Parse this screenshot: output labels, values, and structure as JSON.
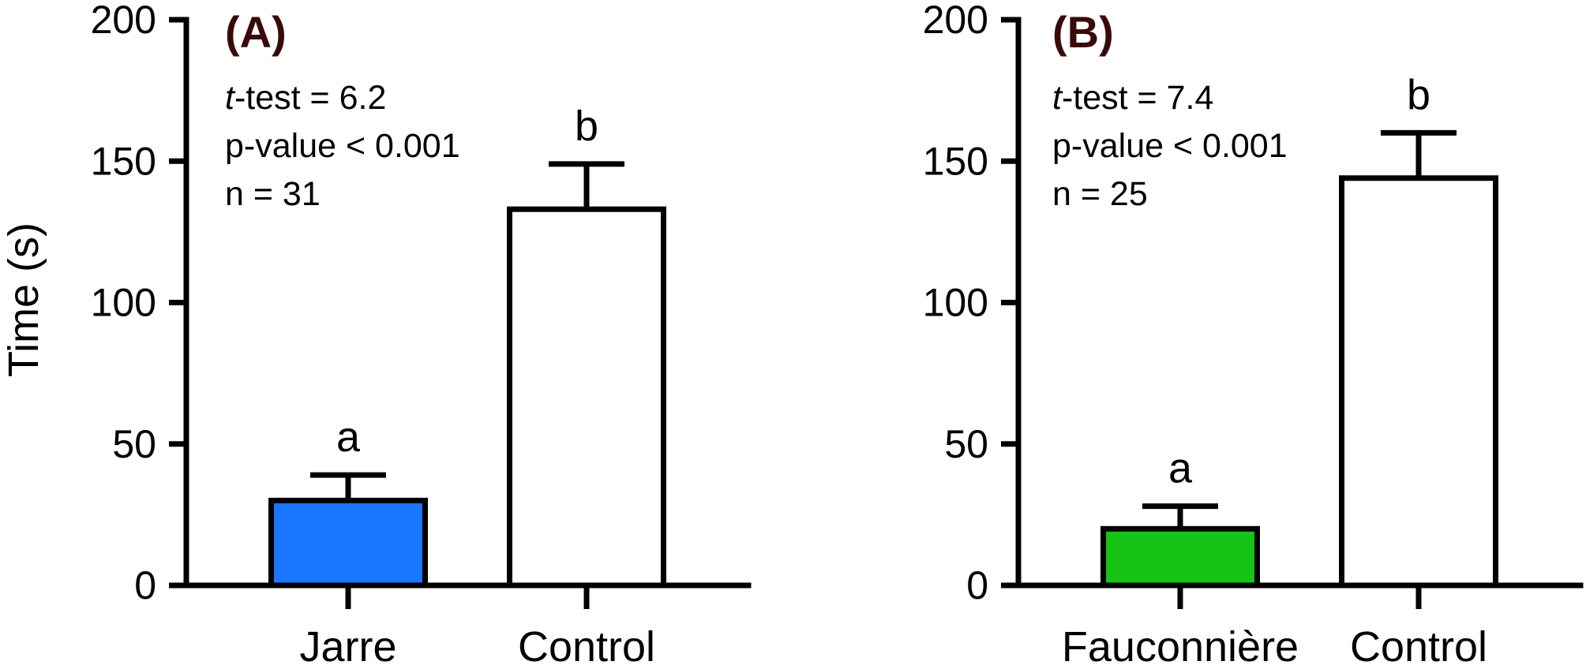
{
  "ylabel": "Time (s)",
  "chart_data": [
    {
      "type": "bar",
      "panel_label": "(A)",
      "categories": [
        "Jarre",
        "Control"
      ],
      "values": [
        30,
        133
      ],
      "errors": [
        9,
        16
      ],
      "bar_colors": [
        "#1a75ff",
        "#ffffff"
      ],
      "significance": [
        "a",
        "b"
      ],
      "stats": {
        "test_prefix": "t",
        "test_suffix": "-test = 6.2",
        "p": "p-value < 0.001",
        "n": "n = 31"
      },
      "ylabel": "Time (s)",
      "ylim": [
        0,
        200
      ],
      "yticks": [
        0,
        50,
        100,
        150,
        200
      ]
    },
    {
      "type": "bar",
      "panel_label": "(B)",
      "categories": [
        "Fauconnière",
        "Control"
      ],
      "values": [
        20,
        144
      ],
      "errors": [
        8,
        16
      ],
      "bar_colors": [
        "#15c415",
        "#ffffff"
      ],
      "significance": [
        "a",
        "b"
      ],
      "stats": {
        "test_prefix": "t",
        "test_suffix": "-test = 7.4",
        "p": "p-value < 0.001",
        "n": "n = 25"
      },
      "ylabel": "",
      "ylim": [
        0,
        200
      ],
      "yticks": [
        0,
        50,
        100,
        150,
        200
      ]
    }
  ]
}
